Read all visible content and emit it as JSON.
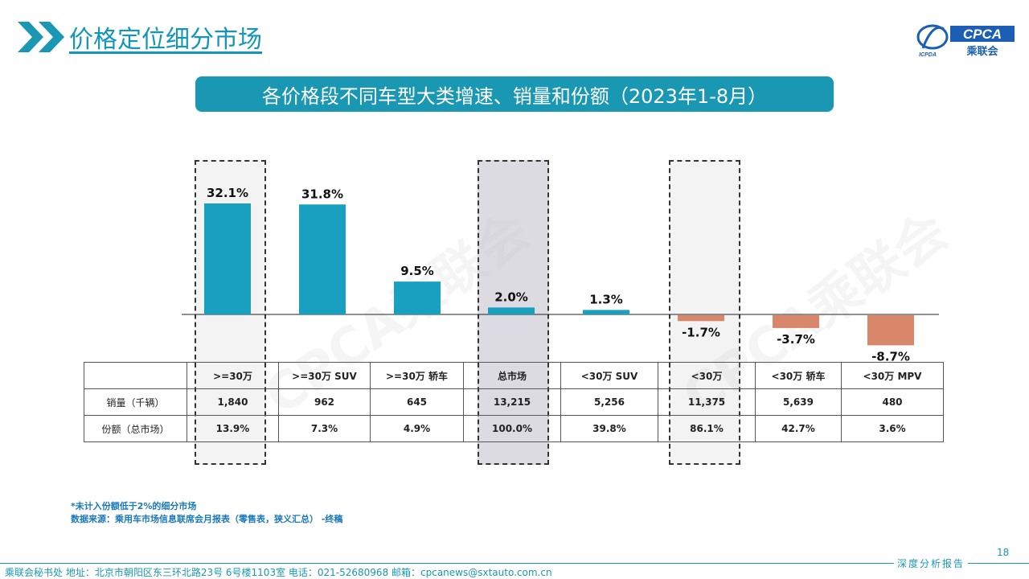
{
  "header": {
    "title": "价格定位细分市场"
  },
  "logo": {
    "text": "CPCA",
    "subtext": "乘联会",
    "small": "ICPDA"
  },
  "banner": {
    "title": "各价格段不同车型大类增速、销量和份额（2023年1-8月）"
  },
  "watermark": "CPCA乘联会",
  "colors": {
    "positive": "#199fbf",
    "negative": "#d9876a",
    "accent": "#1a98b3",
    "highlight_dark": "#dcdbe2",
    "highlight_light": "#f3f3f3"
  },
  "chart_data": {
    "type": "bar",
    "categories": [
      ">=30万",
      ">=30万 SUV",
      ">=30万 轿车",
      "总市场",
      "<30万 SUV",
      "<30万",
      "<30万 轿车",
      "<30万 MPV"
    ],
    "values": [
      32.1,
      31.8,
      9.5,
      2.0,
      1.3,
      -1.7,
      -3.7,
      -8.7
    ],
    "labels": [
      "32.1%",
      "31.8%",
      "9.5%",
      "2.0%",
      "1.3%",
      "-1.7%",
      "-3.7%",
      "-8.7%"
    ],
    "ylim": [
      -10,
      38
    ],
    "title": "",
    "xlabel": "",
    "ylabel": ""
  },
  "table": {
    "headers": [
      "",
      ">=30万",
      ">=30万 SUV",
      ">=30万 轿车",
      "总市场",
      "<30万 SUV",
      "<30万",
      "<30万 轿车",
      "<30万 MPV"
    ],
    "rows": [
      {
        "label": "销量（千辆）",
        "cells": [
          "1,840",
          "962",
          "645",
          "13,215",
          "5,256",
          "11,375",
          "5,639",
          "480"
        ]
      },
      {
        "label": "份额（总市场）",
        "cells": [
          "13.9%",
          "7.3%",
          "4.9%",
          "100.0%",
          "39.8%",
          "86.1%",
          "42.7%",
          "3.6%"
        ]
      }
    ]
  },
  "footnote": {
    "line1": "*未计入份额低于2%的细分市场",
    "line2": "数据来源：乘用车市场信息联席会月报表（零售表，狭义汇总）  -终稿"
  },
  "footer": {
    "text": "乘联会秘书处   地址：北京市朝阳区东三环北路23号 6号楼1103室   电话：021-52680968    邮箱：cpcanews@sxtauto.com.cn",
    "report": "深度分析报告",
    "page": "18"
  }
}
